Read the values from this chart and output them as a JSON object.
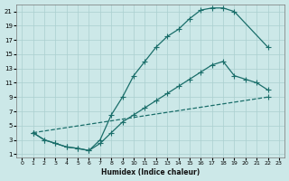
{
  "xlabel": "Humidex (Indice chaleur)",
  "bg_color": "#cce8e8",
  "line_color": "#1a6e6a",
  "grid_color_major": "#aacfcf",
  "grid_color_minor": "#bbdddd",
  "xlim": [
    -0.5,
    23.5
  ],
  "ylim": [
    0.5,
    22
  ],
  "xticks": [
    0,
    1,
    2,
    3,
    4,
    5,
    6,
    7,
    8,
    9,
    10,
    11,
    12,
    13,
    14,
    15,
    16,
    17,
    18,
    19,
    20,
    21,
    22,
    23
  ],
  "yticks": [
    1,
    3,
    5,
    7,
    9,
    11,
    13,
    15,
    17,
    19,
    21
  ],
  "curve1_x": [
    1,
    2,
    3,
    4,
    5,
    6,
    7,
    8,
    9,
    10,
    11,
    12,
    13,
    14,
    15,
    16,
    17,
    18,
    19,
    22
  ],
  "curve1_y": [
    4,
    3,
    2.5,
    2,
    1.8,
    1.5,
    3,
    6.5,
    9,
    12,
    14,
    16,
    17.5,
    18.5,
    20,
    21.2,
    21.5,
    21.5,
    21,
    16
  ],
  "curve2_x": [
    1,
    2,
    3,
    4,
    5,
    6,
    7,
    8,
    9,
    10,
    11,
    12,
    13,
    14,
    15,
    16,
    17,
    18,
    19,
    20,
    21,
    22
  ],
  "curve2_y": [
    4,
    3,
    2.5,
    2,
    1.8,
    1.5,
    2.5,
    4,
    5.5,
    6.5,
    7.5,
    8.5,
    9.5,
    10.5,
    11.5,
    12.5,
    13.5,
    14,
    12,
    11.5,
    11,
    10
  ],
  "curve3_x": [
    1,
    22
  ],
  "curve3_y": [
    4,
    9
  ],
  "marker": "+",
  "markersize": 4,
  "linewidth": 0.9
}
